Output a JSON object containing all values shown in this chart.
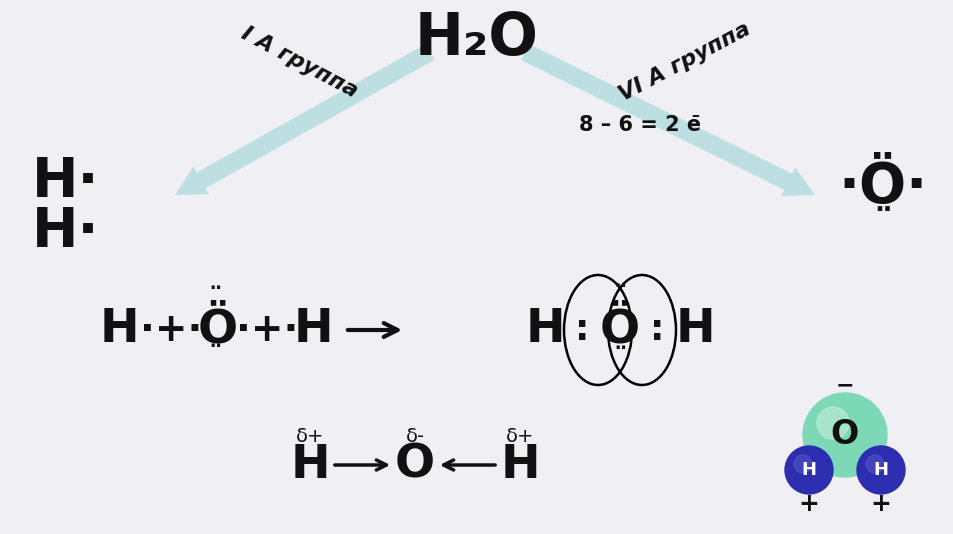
{
  "bg_color": "#f0f0f4",
  "arrow_color": "#b8dde0",
  "text_color": "#111111",
  "title": "H₂O",
  "arrow_left_label": "I A группа",
  "arrow_right_label": "VI A группа",
  "arrow_right_sublabel": "8 – 6 = 2 е̄",
  "H_dot": "H·",
  "O_right_symbol": "·Ö·",
  "O_dots_below": "¨",
  "delta_plus": "δ+",
  "delta_minus": "δ-"
}
